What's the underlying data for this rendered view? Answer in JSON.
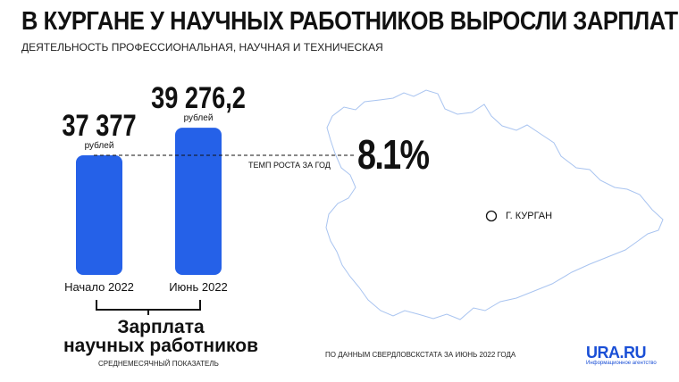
{
  "title": "В КУРГАНЕ У НАУЧНЫХ РАБОТНИКОВ ВЫРОСЛИ ЗАРПЛАТЫ",
  "subtitle": "ДЕЯТЕЛЬНОСТЬ ПРОФЕССИОНАЛЬНАЯ, НАУЧНАЯ И ТЕХНИЧЕСКАЯ",
  "chart_data": {
    "type": "bar",
    "categories": [
      "Начало 2022",
      "Июнь 2022"
    ],
    "values": [
      37377,
      39276.2
    ],
    "value_labels": [
      "37 377",
      "39 276,2"
    ],
    "unit_label": "рублей",
    "bar_color": "#2561e8",
    "growth": {
      "label": "ТЕМП РОСТА ЗА ГОД",
      "value": "8.1%"
    },
    "caption_line1": "Зарплата",
    "caption_line2": "научных работников",
    "caption_note": "СРЕДНЕМЕСЯЧНЫЙ ПОКАЗАТЕЛЬ",
    "grid": false
  },
  "map": {
    "city": "Г. КУРГАН",
    "outline_color": "#a9c4f0"
  },
  "source": "ПО ДАННЫМ СВЕРДЛОВСКСТАТА ЗА ИЮНЬ 2022 ГОДА",
  "logo": {
    "name": "URA.RU",
    "tagline": "Информационное агентство"
  }
}
